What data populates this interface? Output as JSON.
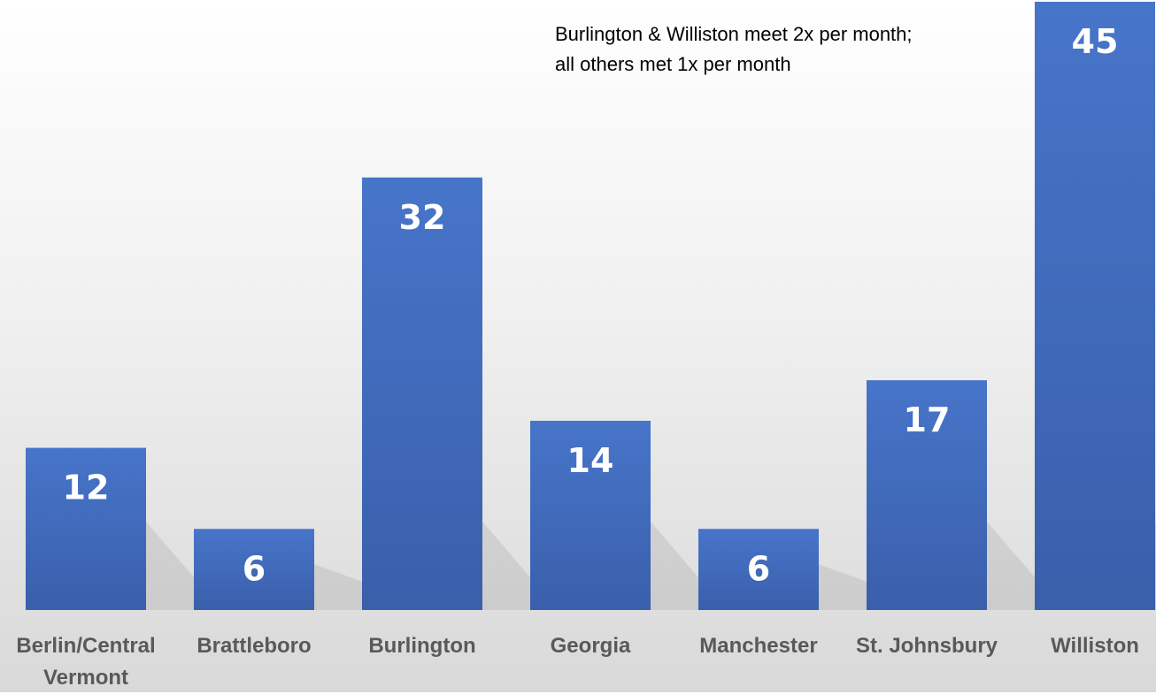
{
  "chart_data": {
    "type": "bar",
    "categories": [
      "Berlin/Central Vermont",
      "Brattleboro",
      "Burlington",
      "Georgia",
      "Manchester",
      "St. Johnsbury",
      "Williston"
    ],
    "values": [
      12,
      6,
      32,
      14,
      6,
      17,
      45
    ],
    "color": "#4472c4",
    "annotation": [
      "Burlington & Williston meet 2x per month;",
      "all others met 1x per month"
    ]
  }
}
